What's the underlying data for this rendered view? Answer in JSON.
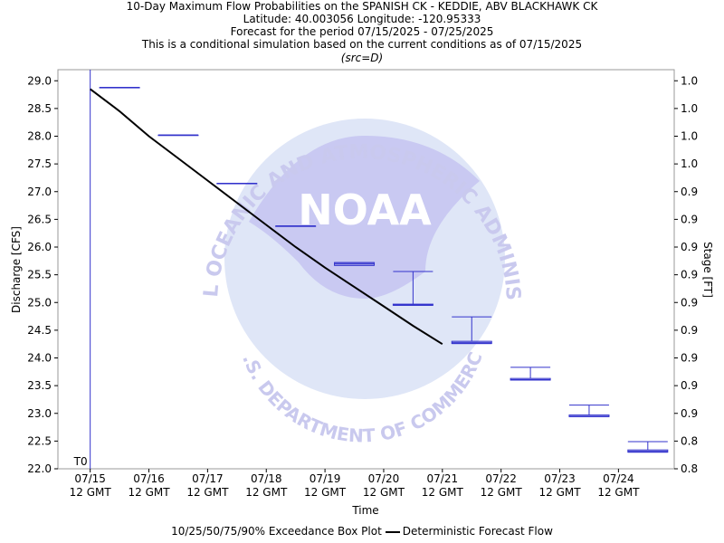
{
  "header": {
    "title": "10-Day Maximum Flow Probabilities on the SPANISH CK - KEDDIE, ABV BLACKHAWK CK",
    "location": "Latitude: 40.003056 Longitude: -120.95333",
    "period": "Forecast for the period 07/15/2025 - 07/25/2025",
    "note": "This is a conditional simulation based on the current conditions as of 07/15/2025",
    "source": "(src=D)"
  },
  "watermark": {
    "top_text": "NATIONAL OCEANIC AND ATMOSPHERIC ADMINISTRATION",
    "bottom_text": "U.S. DEPARTMENT OF COMMERCE",
    "logo_text": "NOAA",
    "color": "#c8c8f0"
  },
  "legend": {
    "box_label": "10/25/50/75/90% Exceedance Box Plot",
    "line_label": "Deterministic Forecast Flow"
  },
  "chart_data": {
    "type": "box",
    "xlabel": "Time",
    "ylabel": "Discharge [CFS]",
    "y2label": "Stage [FT]",
    "ylim": [
      22.0,
      29.2
    ],
    "y_ticks": [
      22.0,
      22.5,
      23.0,
      23.5,
      24.0,
      24.5,
      25.0,
      25.5,
      26.0,
      26.5,
      27.0,
      27.5,
      28.0,
      28.5,
      29.0
    ],
    "y2_tick_labels": [
      "0.8",
      "0.8",
      "0.9",
      "0.9",
      "0.9",
      "0.9",
      "0.9",
      "0.9",
      "0.9",
      "0.9",
      "0.9",
      "1.0",
      "1.0",
      "1.0",
      "1.0"
    ],
    "x_ticks": [
      {
        "label": "07/15",
        "sub": "12 GMT",
        "day": 0
      },
      {
        "label": "07/16",
        "sub": "12 GMT",
        "day": 1
      },
      {
        "label": "07/17",
        "sub": "12 GMT",
        "day": 2
      },
      {
        "label": "07/18",
        "sub": "12 GMT",
        "day": 3
      },
      {
        "label": "07/19",
        "sub": "12 GMT",
        "day": 4
      },
      {
        "label": "07/20",
        "sub": "12 GMT",
        "day": 5
      },
      {
        "label": "07/21",
        "sub": "12 GMT",
        "day": 6
      },
      {
        "label": "07/22",
        "sub": "12 GMT",
        "day": 7
      },
      {
        "label": "07/23",
        "sub": "12 GMT",
        "day": 8
      },
      {
        "label": "07/24",
        "sub": "12 GMT",
        "day": 9
      }
    ],
    "xlim": [
      -0.55,
      9.95
    ],
    "t0_label": "T0",
    "t0_day": 0,
    "boxes": [
      {
        "day": 0.5,
        "p10": 28.88,
        "p25": 28.88,
        "p50": 28.88,
        "p75": 28.88,
        "p90": 28.88
      },
      {
        "day": 1.5,
        "p10": 28.02,
        "p25": 28.02,
        "p50": 28.02,
        "p75": 28.02,
        "p90": 28.02
      },
      {
        "day": 2.5,
        "p10": 27.15,
        "p25": 27.15,
        "p50": 27.15,
        "p75": 27.15,
        "p90": 27.15
      },
      {
        "day": 3.5,
        "p10": 26.38,
        "p25": 26.38,
        "p50": 26.38,
        "p75": 26.38,
        "p90": 26.38
      },
      {
        "day": 4.5,
        "p10": 25.67,
        "p25": 25.67,
        "p50": 25.7,
        "p75": 25.72,
        "p90": 25.72
      },
      {
        "day": 5.5,
        "p10": 24.95,
        "p25": 24.95,
        "p50": 24.96,
        "p75": 24.97,
        "p90": 25.56
      },
      {
        "day": 6.5,
        "p10": 24.26,
        "p25": 24.26,
        "p50": 24.28,
        "p75": 24.3,
        "p90": 24.74
      },
      {
        "day": 7.5,
        "p10": 23.6,
        "p25": 23.6,
        "p50": 23.61,
        "p75": 23.63,
        "p90": 23.83
      },
      {
        "day": 8.5,
        "p10": 22.94,
        "p25": 22.94,
        "p50": 22.95,
        "p75": 22.97,
        "p90": 23.15
      },
      {
        "day": 9.5,
        "p10": 22.3,
        "p25": 22.3,
        "p50": 22.32,
        "p75": 22.34,
        "p90": 22.49
      }
    ],
    "deterministic": {
      "name": "Deterministic Forecast Flow",
      "x": [
        0.0,
        0.5,
        1.0,
        1.5,
        2.0,
        2.5,
        3.0,
        3.5,
        4.0,
        4.5,
        5.0,
        5.5,
        6.0
      ],
      "y": [
        28.85,
        28.45,
        28.0,
        27.6,
        27.2,
        26.8,
        26.4,
        26.0,
        25.63,
        25.28,
        24.93,
        24.58,
        24.25
      ]
    },
    "box_color": "#3333cc",
    "line_color": "#000000",
    "grid": false
  }
}
